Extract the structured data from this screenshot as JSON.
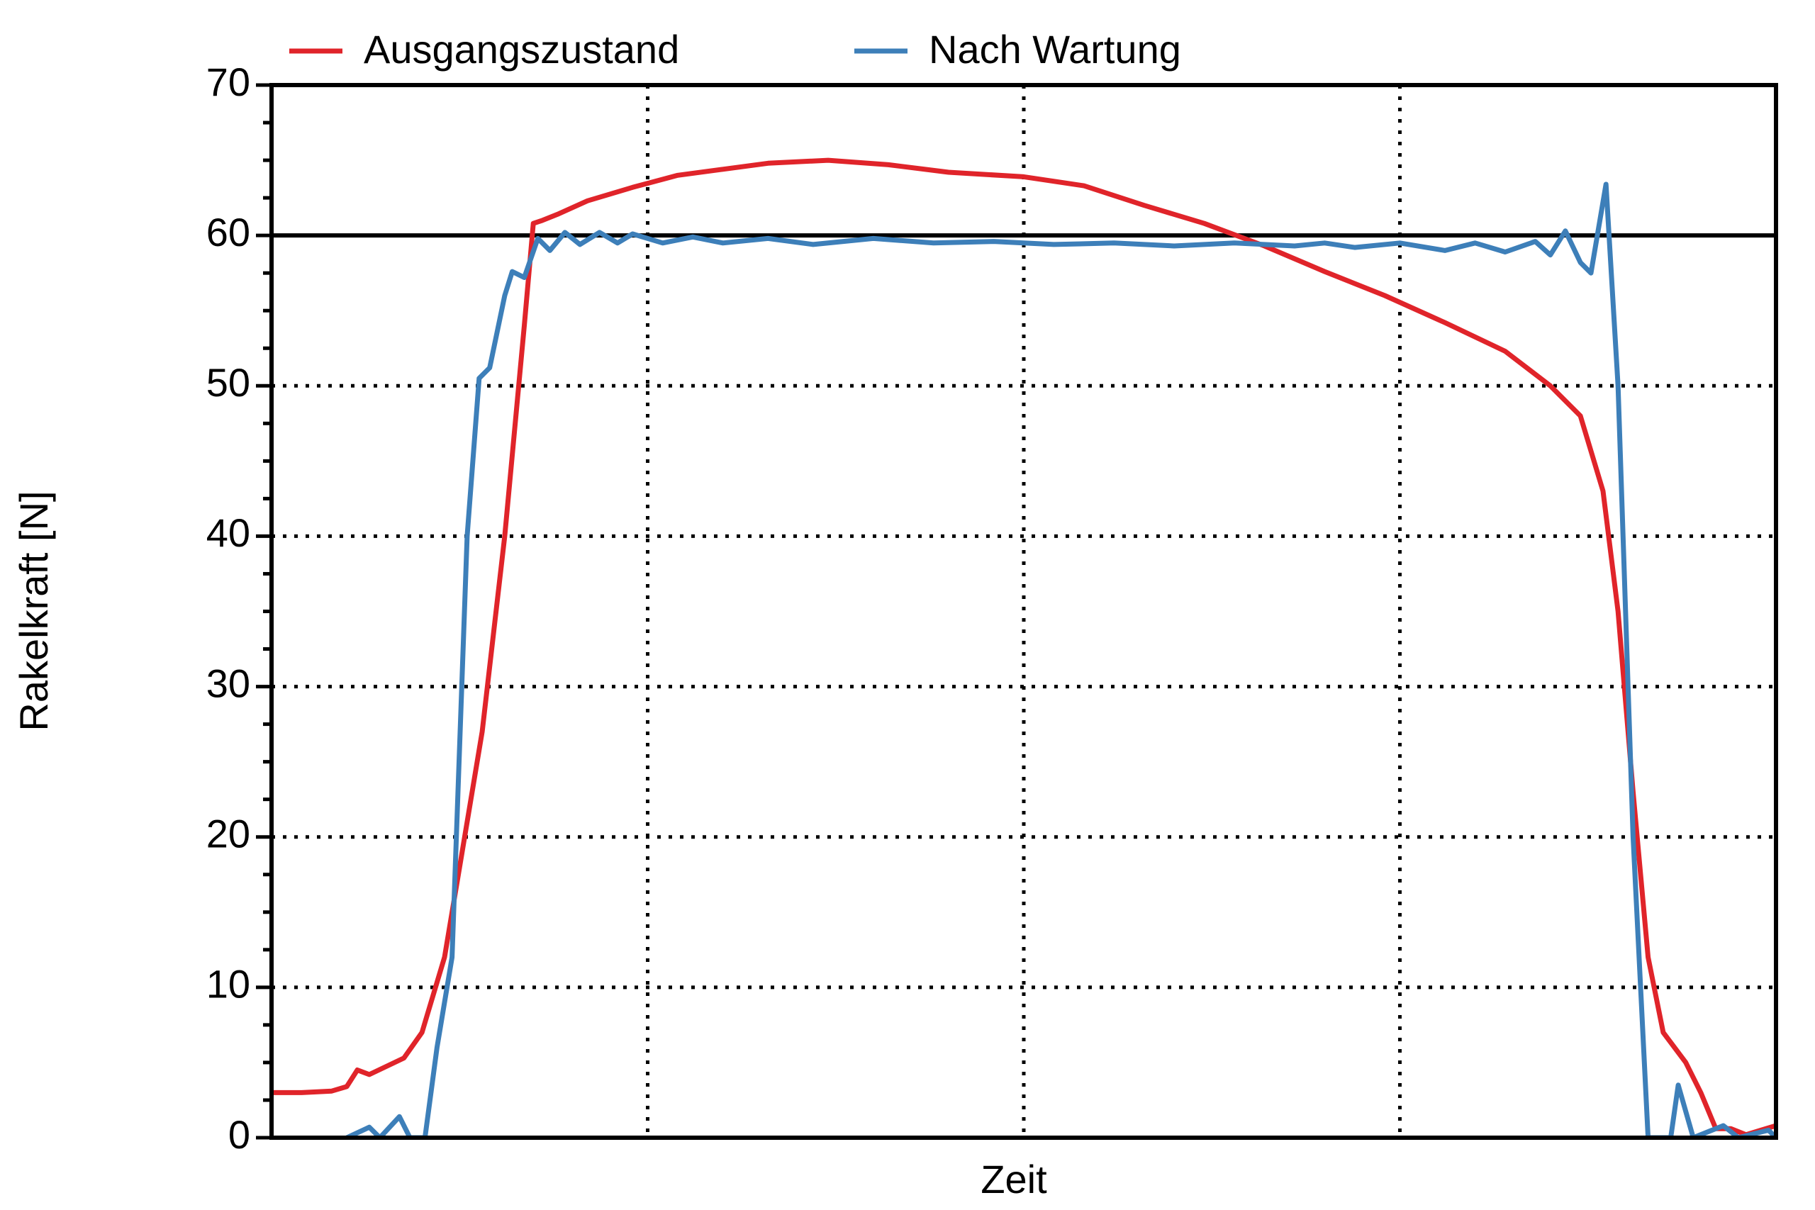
{
  "chart_data": {
    "type": "line",
    "x_label": "Zeit",
    "y_label": "Rakelkraft [N]",
    "xlim": [
      0,
      100
    ],
    "xticks": [
      25,
      50,
      75
    ],
    "ylim": [
      0,
      70
    ],
    "yticks": [
      0,
      10,
      20,
      30,
      40,
      50,
      60,
      70
    ],
    "minor_yticks": [
      2.5,
      5,
      7.5,
      12.5,
      15,
      17.5,
      22.5,
      25,
      27.5,
      32.5,
      35,
      37.5,
      42.5,
      45,
      47.5,
      52.5,
      55,
      57.5,
      62.5,
      65,
      67.5
    ],
    "reference_line": 60,
    "grid": true,
    "legend": "top",
    "series": [
      {
        "name": "Ausgangszustand",
        "color": "#e0242a",
        "x": [
          0,
          2,
          4,
          5,
          5.7,
          6.5,
          8.8,
          10,
          11.5,
          12.5,
          14,
          15.5,
          16.8,
          17.4,
          18,
          19,
          21,
          24,
          27,
          30,
          33,
          37,
          41,
          45,
          50,
          54,
          58,
          62,
          66,
          70,
          74,
          78,
          82,
          85,
          87,
          88.5,
          89.5,
          90.5,
          91.5,
          92.5,
          94,
          95,
          96,
          97,
          98,
          99,
          100
        ],
        "values": [
          3,
          3,
          3.1,
          3.4,
          4.5,
          4.2,
          5.3,
          7,
          12,
          18,
          27,
          40,
          54,
          60.8,
          61,
          61.4,
          62.3,
          63.2,
          64,
          64.4,
          64.8,
          65,
          64.7,
          64.2,
          63.9,
          63.3,
          62,
          60.8,
          59.3,
          57.6,
          56,
          54.2,
          52.3,
          50,
          48,
          43,
          35,
          23,
          12,
          7,
          5,
          3,
          0.6,
          0.6,
          0.2,
          0.5,
          0.8
        ]
      },
      {
        "name": "Nach Wartung",
        "color": "#3d7fb9",
        "x": [
          5,
          6.5,
          7.2,
          8.5,
          9.2,
          10.2,
          11,
          12,
          13,
          13.8,
          14.5,
          15.5,
          16,
          16.8,
          17.7,
          18.5,
          19.5,
          20.5,
          21.8,
          23,
          24,
          26,
          28,
          30,
          33,
          36,
          40,
          44,
          48,
          52,
          56,
          60,
          64,
          68,
          70,
          72,
          75,
          78,
          80,
          82,
          84,
          85,
          86,
          87,
          87.7,
          88.7,
          89.5,
          90.5,
          91.5,
          93,
          93.5,
          94.5,
          96.5,
          97.5,
          99.5,
          100
        ],
        "values": [
          0,
          0.7,
          0,
          1.4,
          0,
          0,
          6,
          12,
          40,
          50.5,
          51.2,
          56,
          57.6,
          57.2,
          59.8,
          59,
          60.2,
          59.4,
          60.2,
          59.5,
          60.1,
          59.5,
          59.9,
          59.5,
          59.8,
          59.4,
          59.8,
          59.5,
          59.6,
          59.4,
          59.5,
          59.3,
          59.5,
          59.3,
          59.5,
          59.2,
          59.5,
          59,
          59.5,
          58.9,
          59.6,
          58.7,
          60.3,
          58.2,
          57.5,
          63.4,
          50,
          20,
          0,
          0,
          3.5,
          0,
          0.8,
          0,
          0.5,
          0
        ]
      }
    ]
  }
}
